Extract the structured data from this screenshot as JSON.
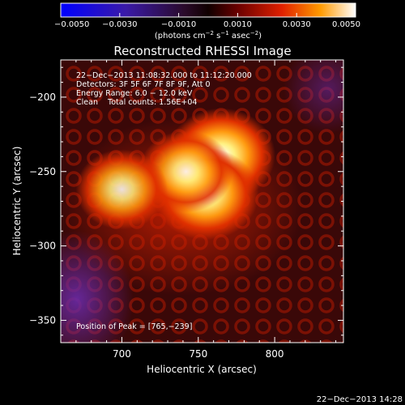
{
  "colorbar": {
    "ticks": [
      "−0.0050",
      "−0.0030",
      "−0.0010",
      "0.0010",
      "0.0030",
      "0.0050"
    ],
    "tick_values": [
      -0.005,
      -0.003,
      -0.001,
      0.001,
      0.003,
      0.005
    ],
    "range": [
      -0.005,
      0.005
    ],
    "units_prefix": "(photons cm",
    "units_exp1": "−2",
    "units_mid": " s",
    "units_exp2": "−1",
    "units_mid2": " asec",
    "units_exp3": "−2",
    "units_suffix": ")"
  },
  "chart_data": {
    "type": "heatmap",
    "title": "Reconstructed RHESSI Image",
    "xlabel": "Heliocentric X (arcsec)",
    "ylabel": "Heliocentric Y (arcsec)",
    "xlim": [
      660,
      845
    ],
    "ylim": [
      -365,
      -175
    ],
    "xticks": [
      700,
      750,
      800
    ],
    "xtick_labels": [
      "700",
      "750",
      "800"
    ],
    "yticks": [
      -200,
      -250,
      -300,
      -350
    ],
    "ytick_labels": [
      "−200",
      "−250",
      "−300",
      "−350"
    ],
    "sources": [
      {
        "x": 765,
        "y": -239,
        "relative_intensity": 1.0
      },
      {
        "x": 755,
        "y": -265,
        "relative_intensity": 0.95
      },
      {
        "x": 742,
        "y": -250,
        "relative_intensity": 0.7
      },
      {
        "x": 700,
        "y": -262,
        "relative_intensity": 0.65
      }
    ],
    "info_lines": [
      "22−Dec−2013 11:08:32.000 to 11:12:20.000",
      "Detectors: 3F 5F 6F 7F 8F 9F, Att 0",
      "Energy Range: 6.0 − 12.0 keV",
      "Clean    Total counts: 1.56E+04"
    ],
    "peak_label": "Position of Peak = [765,−239]",
    "peak": [
      765,
      -239
    ]
  },
  "footer": {
    "timestamp": "22−Dec−2013 14:28"
  }
}
